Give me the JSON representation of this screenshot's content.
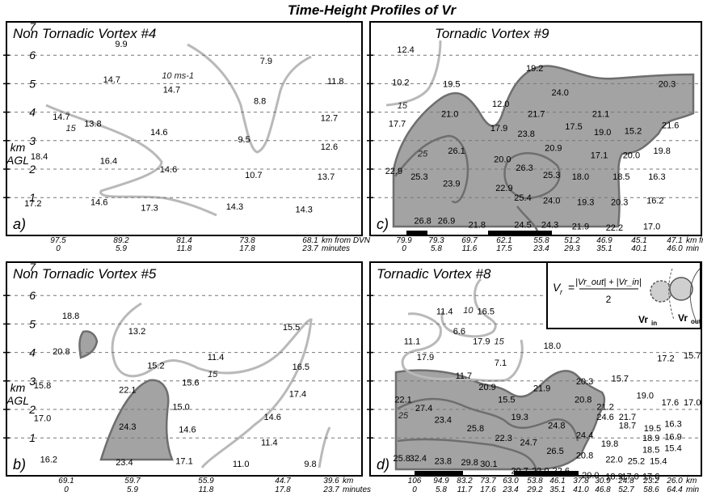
{
  "chart_data": [
    {
      "type": "heatmap",
      "title": "Non Tornadic Vortex #4",
      "panel_label": "a)",
      "ylabel": "km AGL",
      "yticks": [
        "1",
        "2",
        "3",
        "4",
        "5",
        "6",
        "7"
      ],
      "x_row1": [
        "97.5",
        "89.2",
        "81.4",
        "73.8",
        "68.1"
      ],
      "x_row1_unit": "km from DVN",
      "x_row2": [
        "0",
        "5.9",
        "11.8",
        "17.8",
        "23.7"
      ],
      "x_row2_unit": "minutes",
      "values": [
        {
          "text": "9.9",
          "x": 1,
          "y": 6.4
        },
        {
          "text": "7.9",
          "x": 3.3,
          "y": 5.8
        },
        {
          "text": "14.7",
          "x": 0.85,
          "y": 5.15
        },
        {
          "text": "14.7",
          "x": 1.8,
          "y": 4.8
        },
        {
          "text": "11.8",
          "x": 4.4,
          "y": 5.1
        },
        {
          "text": "8.8",
          "x": 3.2,
          "y": 4.4
        },
        {
          "text": "14.7",
          "x": 0.05,
          "y": 3.85
        },
        {
          "text": "13.8",
          "x": 0.55,
          "y": 3.6
        },
        {
          "text": "12.7",
          "x": 4.3,
          "y": 3.8
        },
        {
          "text": "14.6",
          "x": 1.6,
          "y": 3.3
        },
        {
          "text": "9.5",
          "x": 2.95,
          "y": 3.05
        },
        {
          "text": "12.6",
          "x": 4.3,
          "y": 2.8
        },
        {
          "text": "18.4",
          "x": -0.3,
          "y": 2.45
        },
        {
          "text": "16.4",
          "x": 0.8,
          "y": 2.3
        },
        {
          "text": "14.6",
          "x": 1.75,
          "y": 2.0
        },
        {
          "text": "10.7",
          "x": 3.1,
          "y": 1.8
        },
        {
          "text": "13.7",
          "x": 4.25,
          "y": 1.75
        },
        {
          "text": "17.2",
          "x": -0.4,
          "y": 0.8
        },
        {
          "text": "14.6",
          "x": 0.65,
          "y": 0.85
        },
        {
          "text": "17.3",
          "x": 1.45,
          "y": 0.65
        },
        {
          "text": "14.3",
          "x": 2.8,
          "y": 0.7
        },
        {
          "text": "14.3",
          "x": 3.9,
          "y": 0.6
        }
      ],
      "contour_labels": [
        {
          "text": "15",
          "x": 0.2,
          "y": 3.45
        },
        {
          "text": "10 ms-1",
          "x": 1.9,
          "y": 5.3
        }
      ]
    },
    {
      "type": "heatmap",
      "title": "Tornadic Vortex #9",
      "panel_label": "c)",
      "ylabel": "",
      "yticks": [],
      "x_row1": [
        "79.9",
        "79.3",
        "69.7",
        "62.1",
        "55.8",
        "51.2",
        "46.9",
        "45.1",
        "47.1"
      ],
      "x_row1_unit": "km from KILX",
      "x_row2": [
        "0",
        "5.8",
        "11.6",
        "17.5",
        "23.4",
        "29.3",
        "35.1",
        "40.1",
        "46.0"
      ],
      "x_row2_unit": "min",
      "values": [
        {
          "text": "12.4",
          "x": 0.05,
          "y": 6.2
        },
        {
          "text": "19.2",
          "x": 3.85,
          "y": 5.55
        },
        {
          "text": "10.2",
          "x": -0.1,
          "y": 5.05
        },
        {
          "text": "19.5",
          "x": 1.4,
          "y": 5.0
        },
        {
          "text": "24.0",
          "x": 4.6,
          "y": 4.7
        },
        {
          "text": "20.3",
          "x": 7.75,
          "y": 5.0
        },
        {
          "text": "12.0",
          "x": 2.85,
          "y": 4.3
        },
        {
          "text": "21.0",
          "x": 1.35,
          "y": 3.95
        },
        {
          "text": "21.7",
          "x": 3.9,
          "y": 3.95
        },
        {
          "text": "21.1",
          "x": 5.8,
          "y": 3.95
        },
        {
          "text": "17.7",
          "x": -0.2,
          "y": 3.6
        },
        {
          "text": "17.9",
          "x": 2.8,
          "y": 3.45
        },
        {
          "text": "17.5",
          "x": 5.0,
          "y": 3.5
        },
        {
          "text": "21.6",
          "x": 7.85,
          "y": 3.55
        },
        {
          "text": "23.8",
          "x": 3.6,
          "y": 3.25
        },
        {
          "text": "19.0",
          "x": 5.85,
          "y": 3.3
        },
        {
          "text": "15.2",
          "x": 6.75,
          "y": 3.35
        },
        {
          "text": "26.1",
          "x": 1.55,
          "y": 2.65
        },
        {
          "text": "20.9",
          "x": 4.4,
          "y": 2.75
        },
        {
          "text": "20.0",
          "x": 2.9,
          "y": 2.35
        },
        {
          "text": "17.1",
          "x": 5.75,
          "y": 2.5
        },
        {
          "text": "20.0",
          "x": 6.7,
          "y": 2.5
        },
        {
          "text": "19.8",
          "x": 7.6,
          "y": 2.65
        },
        {
          "text": "22.9",
          "x": -0.3,
          "y": 1.95
        },
        {
          "text": "26.3",
          "x": 3.55,
          "y": 2.05
        },
        {
          "text": "25.3",
          "x": 4.35,
          "y": 1.8
        },
        {
          "text": "25.3",
          "x": 0.45,
          "y": 1.75
        },
        {
          "text": "18.0",
          "x": 5.2,
          "y": 1.75
        },
        {
          "text": "18.5",
          "x": 6.4,
          "y": 1.75
        },
        {
          "text": "16.3",
          "x": 7.45,
          "y": 1.75
        },
        {
          "text": "23.9",
          "x": 1.4,
          "y": 1.5
        },
        {
          "text": "22.9",
          "x": 2.95,
          "y": 1.35
        },
        {
          "text": "25.4",
          "x": 3.5,
          "y": 1.0
        },
        {
          "text": "24.0",
          "x": 4.35,
          "y": 0.9
        },
        {
          "text": "19.3",
          "x": 5.35,
          "y": 0.85
        },
        {
          "text": "20.3",
          "x": 6.35,
          "y": 0.85
        },
        {
          "text": "16.2",
          "x": 7.4,
          "y": 0.9
        },
        {
          "text": "26.8",
          "x": 0.55,
          "y": 0.2
        },
        {
          "text": "26.9",
          "x": 1.25,
          "y": 0.2
        },
        {
          "text": "21.8",
          "x": 2.15,
          "y": 0.05
        },
        {
          "text": "24.5",
          "x": 3.5,
          "y": 0.05
        },
        {
          "text": "24.3",
          "x": 4.3,
          "y": 0.05
        },
        {
          "text": "21.9",
          "x": 5.2,
          "y": 0.0
        },
        {
          "text": "22.2",
          "x": 6.2,
          "y": -0.05
        },
        {
          "text": "17.0",
          "x": 7.3,
          "y": 0.0
        }
      ],
      "contour_labels": [
        {
          "text": "15",
          "x": -0.05,
          "y": 4.25
        },
        {
          "text": "25",
          "x": 0.55,
          "y": 2.55
        }
      ]
    },
    {
      "type": "heatmap",
      "title": "Non Tornadic Vortex #5",
      "panel_label": "b)",
      "ylabel": "km AGL",
      "yticks": [
        "1",
        "2",
        "3",
        "4",
        "5",
        "6",
        "7"
      ],
      "x_row1": [
        "69.1",
        "59.7",
        "55.9",
        "44.7",
        "39.6"
      ],
      "x_row1_unit": "km",
      "x_row2": [
        "0",
        "5.9",
        "11.8",
        "17.8",
        "23.7"
      ],
      "x_row2_unit": "minutes",
      "values": [
        {
          "text": "18.8",
          "x": 0.2,
          "y": 5.3
        },
        {
          "text": "15.5",
          "x": 3.7,
          "y": 4.9
        },
        {
          "text": "13.2",
          "x": 1.25,
          "y": 4.75
        },
        {
          "text": "20.8",
          "x": 0.05,
          "y": 4.05
        },
        {
          "text": "11.4",
          "x": 2.5,
          "y": 3.85
        },
        {
          "text": "15.2",
          "x": 1.55,
          "y": 3.55
        },
        {
          "text": "16.5",
          "x": 3.85,
          "y": 3.5
        },
        {
          "text": "15.8",
          "x": -0.25,
          "y": 2.85
        },
        {
          "text": "15.6",
          "x": 2.1,
          "y": 2.95
        },
        {
          "text": "17.4",
          "x": 3.8,
          "y": 2.55
        },
        {
          "text": "22.1",
          "x": 1.1,
          "y": 2.7
        },
        {
          "text": "15.0",
          "x": 1.95,
          "y": 2.1
        },
        {
          "text": "17.0",
          "x": -0.25,
          "y": 1.7
        },
        {
          "text": "14.6",
          "x": 3.4,
          "y": 1.75
        },
        {
          "text": "24.3",
          "x": 1.1,
          "y": 1.4
        },
        {
          "text": "14.6",
          "x": 2.05,
          "y": 1.3
        },
        {
          "text": "11.4",
          "x": 3.35,
          "y": 0.85
        },
        {
          "text": "16.2",
          "x": -0.15,
          "y": 0.25
        },
        {
          "text": "23.4",
          "x": 1.05,
          "y": 0.15
        },
        {
          "text": "17.1",
          "x": 2.0,
          "y": 0.2
        },
        {
          "text": "11.0",
          "x": 2.9,
          "y": 0.1
        },
        {
          "text": "9.8",
          "x": 4.0,
          "y": 0.1
        }
      ],
      "contour_labels": [
        {
          "text": "15",
          "x": 2.45,
          "y": 3.25
        }
      ]
    },
    {
      "type": "heatmap",
      "title": "Tornadic Vortex #8",
      "panel_label": "d)",
      "ylabel": "",
      "yticks": [],
      "x_row1": [
        "106",
        "94.9",
        "83.2",
        "73.7",
        "63.0",
        "53.8",
        "46.1",
        "37.8",
        "30.9",
        "24.8",
        "23.2",
        "26.0"
      ],
      "x_row1_unit": "km",
      "x_row2": [
        "0",
        "5.8",
        "11.7",
        "17.6",
        "23.4",
        "29.2",
        "35.1",
        "41.0",
        "46.8",
        "52.7",
        "58.6",
        "64.4"
      ],
      "x_row2_unit": "min",
      "values": [
        {
          "text": "11.4",
          "x": 1.1,
          "y": 5.45
        },
        {
          "text": "16.5",
          "x": 2.5,
          "y": 5.45
        },
        {
          "text": "6.6",
          "x": 1.6,
          "y": 4.75
        },
        {
          "text": "17.9",
          "x": 2.35,
          "y": 4.4
        },
        {
          "text": "11.1",
          "x": 0.0,
          "y": 4.4
        },
        {
          "text": "18.0",
          "x": 4.75,
          "y": 4.25
        },
        {
          "text": "17.9",
          "x": 0.45,
          "y": 3.85
        },
        {
          "text": "7.1",
          "x": 3.0,
          "y": 3.65
        },
        {
          "text": "17.2",
          "x": 8.6,
          "y": 3.8
        },
        {
          "text": "15.7",
          "x": 9.5,
          "y": 3.9
        },
        {
          "text": "11.7",
          "x": 1.75,
          "y": 3.2
        },
        {
          "text": "15.7",
          "x": 7.05,
          "y": 3.1
        },
        {
          "text": "20.3",
          "x": 5.85,
          "y": 3.0
        },
        {
          "text": "20.9",
          "x": 2.55,
          "y": 2.8
        },
        {
          "text": "21.9",
          "x": 4.4,
          "y": 2.75
        },
        {
          "text": "19.0",
          "x": 7.9,
          "y": 2.5
        },
        {
          "text": "22.1",
          "x": -0.3,
          "y": 2.35
        },
        {
          "text": "15.5",
          "x": 3.2,
          "y": 2.35
        },
        {
          "text": "20.8",
          "x": 5.8,
          "y": 2.35
        },
        {
          "text": "17.6",
          "x": 8.75,
          "y": 2.25
        },
        {
          "text": "17.0",
          "x": 9.5,
          "y": 2.25
        },
        {
          "text": "27.4",
          "x": 0.4,
          "y": 2.05
        },
        {
          "text": "21.2",
          "x": 6.55,
          "y": 2.1
        },
        {
          "text": "19.3",
          "x": 3.65,
          "y": 1.75
        },
        {
          "text": "24.6",
          "x": 6.55,
          "y": 1.75
        },
        {
          "text": "21.7",
          "x": 7.3,
          "y": 1.75
        },
        {
          "text": "23.4",
          "x": 1.05,
          "y": 1.65
        },
        {
          "text": "24.8",
          "x": 4.9,
          "y": 1.45
        },
        {
          "text": "18.7",
          "x": 7.3,
          "y": 1.45
        },
        {
          "text": "19.5",
          "x": 8.15,
          "y": 1.35
        },
        {
          "text": "16.3",
          "x": 8.85,
          "y": 1.5
        },
        {
          "text": "25.8",
          "x": 2.15,
          "y": 1.35
        },
        {
          "text": "24.4",
          "x": 5.85,
          "y": 1.1
        },
        {
          "text": "18.9",
          "x": 8.1,
          "y": 1.0
        },
        {
          "text": "16.9",
          "x": 8.85,
          "y": 1.05
        },
        {
          "text": "22.3",
          "x": 3.1,
          "y": 1.0
        },
        {
          "text": "24.7",
          "x": 3.95,
          "y": 0.85
        },
        {
          "text": "19.8",
          "x": 6.7,
          "y": 0.8
        },
        {
          "text": "18.5",
          "x": 8.1,
          "y": 0.6
        },
        {
          "text": "15.4",
          "x": 8.85,
          "y": 0.65
        },
        {
          "text": "26.5",
          "x": 4.85,
          "y": 0.55
        },
        {
          "text": "20.8",
          "x": 5.85,
          "y": 0.4
        },
        {
          "text": "22.0",
          "x": 6.85,
          "y": 0.25
        },
        {
          "text": "25.2",
          "x": 7.6,
          "y": 0.2
        },
        {
          "text": "15.4",
          "x": 8.35,
          "y": 0.2
        },
        {
          "text": "25.8",
          "x": -0.35,
          "y": 0.3
        },
        {
          "text": "32.4",
          "x": 0.2,
          "y": 0.3
        },
        {
          "text": "23.8",
          "x": 1.05,
          "y": 0.2
        },
        {
          "text": "29.8",
          "x": 1.95,
          "y": 0.15
        },
        {
          "text": "30.1",
          "x": 2.6,
          "y": 0.1
        },
        {
          "text": "20.7",
          "x": 3.65,
          "y": -0.15
        },
        {
          "text": "22.0",
          "x": 4.35,
          "y": -0.15
        },
        {
          "text": "22.6",
          "x": 5.05,
          "y": -0.15
        },
        {
          "text": "20.0",
          "x": 6.05,
          "y": -0.3
        },
        {
          "text": "18.9",
          "x": 6.85,
          "y": -0.35
        },
        {
          "text": "17.0",
          "x": 7.4,
          "y": -0.35
        },
        {
          "text": "17.6",
          "x": 8.1,
          "y": -0.35
        }
      ],
      "contour_labels": [
        {
          "text": "10",
          "x": 1.9,
          "y": 5.5
        },
        {
          "text": "15",
          "x": 2.95,
          "y": 4.4
        },
        {
          "text": "25",
          "x": -0.3,
          "y": 1.8
        }
      ]
    }
  ],
  "figure": {
    "title": "Time-Height Profiles of Vr",
    "formula_lhs": "V",
    "formula_lhs_sub": "r",
    "formula_eq": "=",
    "formula_num": "|Vr_out| + |Vr_in|",
    "formula_den": "2",
    "vr_in_label": "Vr",
    "vr_in_sub": "in",
    "vr_out_label": "Vr",
    "vr_out_sub": "out"
  },
  "colors": {
    "shade": "#a3a3a3",
    "contour_light": "#b9b9b9",
    "contour_dark": "#6e6e6e"
  }
}
